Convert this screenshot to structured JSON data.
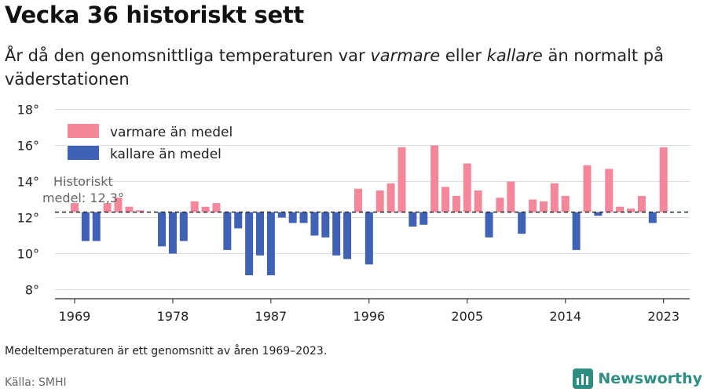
{
  "header": {
    "title": "Vecka 36 historiskt sett",
    "subtitle_parts": [
      "År då den genomsnittliga temperaturen var ",
      "varmare",
      " eller ",
      "kallare",
      " än normalt på väderstationen"
    ]
  },
  "footer": {
    "note": "Medeltemperaturen är ett genomsnitt av åren 1969–2023.",
    "source": "Källa: SMHI",
    "brand": "Newsworthy"
  },
  "colors": {
    "warm": "#f4889a",
    "cold": "#3f62b7",
    "grid": "#dddddd",
    "mean_line": "#333333",
    "brand": "#2d8f84"
  },
  "icons": {
    "brand": "bar-chart-logo-icon"
  },
  "chart_data": {
    "type": "bar",
    "title": "Vecka 36 historiskt sett",
    "x_ticks": [
      1969,
      1978,
      1987,
      1996,
      2005,
      2014,
      2023
    ],
    "y_ticks": [
      "8°",
      "10°",
      "12°",
      "14°",
      "16°",
      "18°"
    ],
    "y_tick_values": [
      8,
      10,
      12,
      14,
      16,
      18
    ],
    "ylim": [
      7.5,
      18.5
    ],
    "grid": true,
    "legend_position": "top-left",
    "baseline": 12.3,
    "baseline_label_lines": [
      "Historiskt",
      "medel: 12,3°"
    ],
    "legend": [
      {
        "name": "varmare än medel",
        "color": "#f4889a"
      },
      {
        "name": "kallare än medel",
        "color": "#3f62b7"
      }
    ],
    "years": [
      1969,
      1970,
      1971,
      1972,
      1973,
      1974,
      1975,
      1976,
      1977,
      1978,
      1979,
      1980,
      1981,
      1982,
      1983,
      1984,
      1985,
      1986,
      1987,
      1988,
      1989,
      1990,
      1991,
      1992,
      1993,
      1994,
      1995,
      1996,
      1997,
      1998,
      1999,
      2000,
      2001,
      2002,
      2003,
      2004,
      2005,
      2006,
      2007,
      2008,
      2009,
      2010,
      2011,
      2012,
      2013,
      2014,
      2015,
      2016,
      2017,
      2018,
      2019,
      2020,
      2021,
      2022,
      2023
    ],
    "values": [
      12.8,
      10.7,
      10.7,
      12.8,
      13.1,
      12.6,
      12.4,
      null,
      10.4,
      10.0,
      10.7,
      12.9,
      12.6,
      12.8,
      10.2,
      11.4,
      8.8,
      9.9,
      8.8,
      12.0,
      11.7,
      11.7,
      11.0,
      10.9,
      9.9,
      9.7,
      13.6,
      9.4,
      13.5,
      13.9,
      15.9,
      11.5,
      11.6,
      16.0,
      13.7,
      13.2,
      15.0,
      13.5,
      10.9,
      13.1,
      14.0,
      11.1,
      13.0,
      12.9,
      13.9,
      13.2,
      10.2,
      14.9,
      12.1,
      14.7,
      12.6,
      12.5,
      13.2,
      11.7,
      15.9
    ]
  }
}
